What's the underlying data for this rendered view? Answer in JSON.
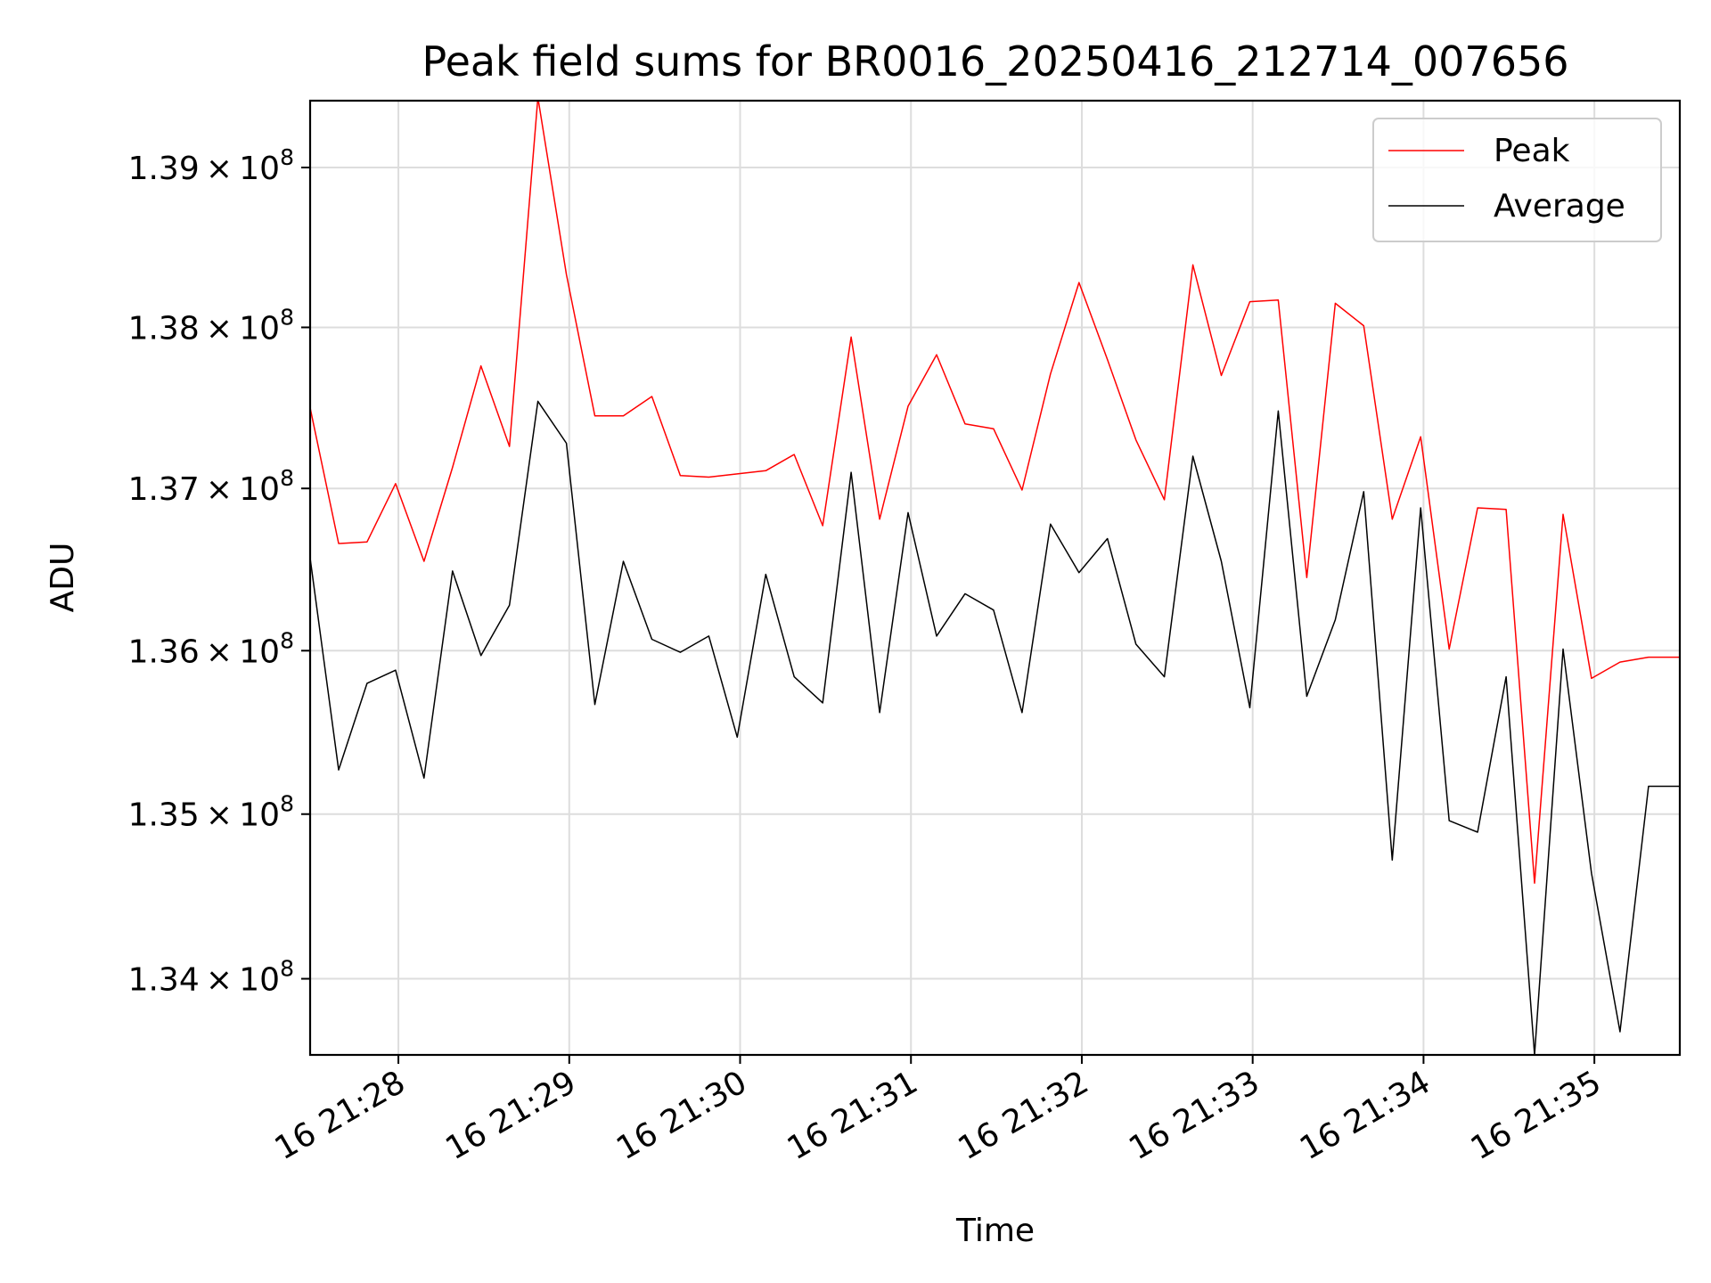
{
  "chart_data": {
    "type": "line",
    "title": "Peak field sums for BR0016_20250416_212714_007656",
    "xlabel": "Time",
    "ylabel": "ADU",
    "y_scale": "log",
    "y_tick_values": [
      134000000,
      135000000,
      136000000,
      137000000,
      138000000,
      139000000
    ],
    "y_tick_labels": [
      {
        "mantissa": "1.34",
        "exponent": "8"
      },
      {
        "mantissa": "1.35",
        "exponent": "8"
      },
      {
        "mantissa": "1.36",
        "exponent": "8"
      },
      {
        "mantissa": "1.37",
        "exponent": "8"
      },
      {
        "mantissa": "1.38",
        "exponent": "8"
      },
      {
        "mantissa": "1.39",
        "exponent": "8"
      }
    ],
    "ylim": [
      133540000,
      139420000
    ],
    "x_tick_values": [
      "21:28",
      "21:29",
      "21:30",
      "21:31",
      "21:32",
      "21:33",
      "21:34",
      "21:35"
    ],
    "x_tick_labels": [
      "16 21:28",
      "16 21:29",
      "16 21:30",
      "16 21:31",
      "16 21:32",
      "16 21:33",
      "16 21:34",
      "16 21:35"
    ],
    "xlim": [
      "21:27:29",
      "21:35:30"
    ],
    "grid": true,
    "legend_position": "top-right",
    "x": [
      "21:27:29",
      "21:27:39",
      "21:27:49",
      "21:27:59",
      "21:28:09",
      "21:28:19",
      "21:28:29",
      "21:28:39",
      "21:28:49",
      "21:28:59",
      "21:29:09",
      "21:29:19",
      "21:29:29",
      "21:29:39",
      "21:29:49",
      "21:29:59",
      "21:30:09",
      "21:30:19",
      "21:30:29",
      "21:30:39",
      "21:30:49",
      "21:30:59",
      "21:31:09",
      "21:31:19",
      "21:31:29",
      "21:31:39",
      "21:31:49",
      "21:31:59",
      "21:32:09",
      "21:32:19",
      "21:32:29",
      "21:32:39",
      "21:32:49",
      "21:32:59",
      "21:33:09",
      "21:33:19",
      "21:33:29",
      "21:33:39",
      "21:33:49",
      "21:33:59",
      "21:34:09",
      "21:34:19",
      "21:34:29",
      "21:34:39",
      "21:34:49",
      "21:34:59",
      "21:35:09",
      "21:35:19",
      "21:35:30"
    ],
    "series": [
      {
        "name": "Peak",
        "color": "#ff0000",
        "values": [
          137500000,
          136660000,
          136670000,
          137030000,
          136550000,
          137130000,
          137760000,
          137260000,
          139440000,
          138330000,
          137450000,
          137450000,
          137570000,
          137080000,
          137070000,
          137090000,
          137110000,
          137210000,
          136770000,
          137940000,
          136810000,
          137510000,
          137830000,
          137400000,
          137370000,
          136990000,
          137710000,
          138280000,
          137800000,
          137300000,
          136930000,
          138390000,
          137700000,
          138160000,
          138170000,
          136450000,
          138150000,
          138010000,
          136810000,
          137320000,
          136010000,
          136880000,
          136870000,
          134580000,
          136840000,
          135830000,
          135930000,
          135960000,
          135960000
        ]
      },
      {
        "name": "Average",
        "color": "#000000",
        "values": [
          136570000,
          135270000,
          135800000,
          135880000,
          135220000,
          136490000,
          135970000,
          136280000,
          137540000,
          137280000,
          135670000,
          136550000,
          136070000,
          135990000,
          136090000,
          135470000,
          136470000,
          135840000,
          135680000,
          137100000,
          135620000,
          136850000,
          136090000,
          136350000,
          136250000,
          135620000,
          136780000,
          136480000,
          136690000,
          136040000,
          135840000,
          137200000,
          136550000,
          135650000,
          137480000,
          135720000,
          136190000,
          136980000,
          134720000,
          136880000,
          134960000,
          134890000,
          135840000,
          133540000,
          136010000,
          134640000,
          133680000,
          135170000,
          135170000
        ]
      }
    ]
  }
}
